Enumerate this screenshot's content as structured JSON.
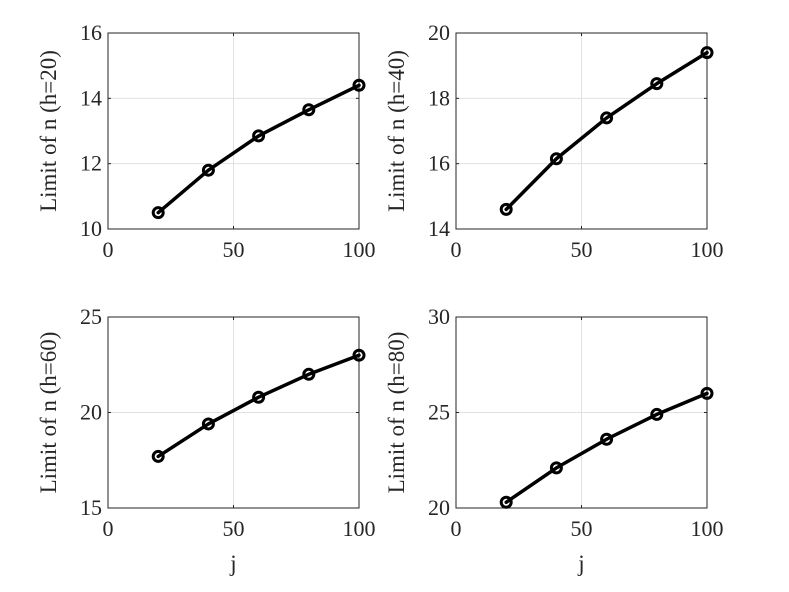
{
  "chart_data": [
    {
      "type": "line",
      "title": "",
      "xlabel": "",
      "ylabel": "Limit of n (h=20)",
      "xlim": [
        0,
        100
      ],
      "ylim": [
        10,
        16
      ],
      "xticks": [
        0,
        50,
        100
      ],
      "yticks": [
        10,
        12,
        14,
        16
      ],
      "grid": true,
      "x": [
        20,
        40,
        60,
        80,
        100
      ],
      "series": [
        {
          "values": [
            10.5,
            11.8,
            12.85,
            13.65,
            14.4
          ],
          "color": "#000000",
          "marker": "circle"
        }
      ]
    },
    {
      "type": "line",
      "title": "",
      "xlabel": "",
      "ylabel": "Limit of n (h=40)",
      "xlim": [
        0,
        100
      ],
      "ylim": [
        14,
        20
      ],
      "xticks": [
        0,
        50,
        100
      ],
      "yticks": [
        14,
        16,
        18,
        20
      ],
      "grid": true,
      "x": [
        20,
        40,
        60,
        80,
        100
      ],
      "series": [
        {
          "values": [
            14.6,
            16.15,
            17.4,
            18.45,
            19.4
          ],
          "color": "#000000",
          "marker": "circle"
        }
      ]
    },
    {
      "type": "line",
      "title": "",
      "xlabel": "j",
      "ylabel": "Limit of n (h=60)",
      "xlim": [
        0,
        100
      ],
      "ylim": [
        15,
        25
      ],
      "xticks": [
        0,
        50,
        100
      ],
      "yticks": [
        15,
        20,
        25
      ],
      "grid": true,
      "x": [
        20,
        40,
        60,
        80,
        100
      ],
      "series": [
        {
          "values": [
            17.7,
            19.4,
            20.8,
            22.0,
            23.0
          ],
          "color": "#000000",
          "marker": "circle"
        }
      ]
    },
    {
      "type": "line",
      "title": "",
      "xlabel": "j",
      "ylabel": "Limit of n (h=80)",
      "xlim": [
        0,
        100
      ],
      "ylim": [
        20,
        30
      ],
      "xticks": [
        0,
        50,
        100
      ],
      "yticks": [
        20,
        25,
        30
      ],
      "grid": true,
      "x": [
        20,
        40,
        60,
        80,
        100
      ],
      "series": [
        {
          "values": [
            20.3,
            22.1,
            23.6,
            24.9,
            26.0
          ],
          "color": "#000000",
          "marker": "circle"
        }
      ]
    }
  ]
}
